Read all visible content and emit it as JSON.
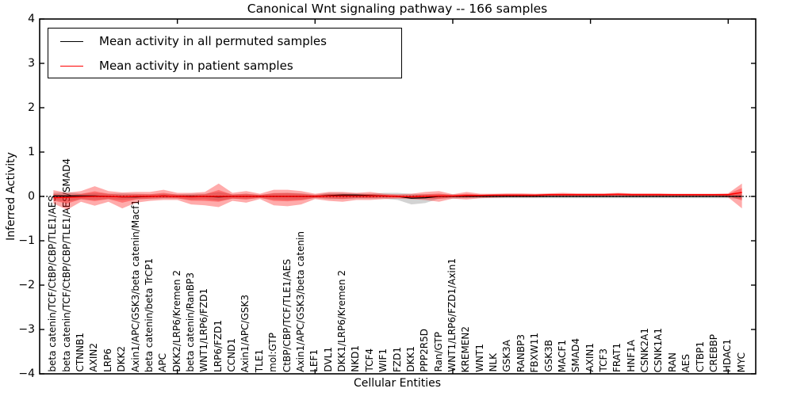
{
  "figure": {
    "title": "Canonical Wnt signaling pathway -- 166 samples",
    "xlabel": "Cellular Entities",
    "ylabel": "Inferred Activity"
  },
  "legend": {
    "entries": [
      {
        "label": "Mean activity in all permuted samples",
        "color": "#000000"
      },
      {
        "label": "Mean activity in patient samples",
        "color": "#ff0000"
      }
    ]
  },
  "axes": {
    "ylim": [
      -4,
      4
    ],
    "y_tick_values": [
      4,
      3,
      2,
      1,
      0,
      -1,
      -2,
      -3,
      -4
    ],
    "y_tick_labels": [
      "4",
      "3",
      "2",
      "1",
      "0",
      "−1",
      "−2",
      "−3",
      "−4"
    ],
    "x_major_tick_positions": [
      10,
      20,
      30,
      40,
      50
    ],
    "zero_line": true
  },
  "chart_data": {
    "type": "line",
    "title": "Canonical Wnt signaling pathway -- 166 samples",
    "xlabel": "Cellular Entities",
    "ylabel": "Inferred Activity",
    "ylim": [
      -4,
      4
    ],
    "legend_position": "upper left",
    "categories": [
      "beta catenin/TCF/CtBP/CBP/TLE1/AES",
      "beta catenin/TCF/CtBP/CBP/TLE1/AES/SMAD4",
      "CTNNB1",
      "AXIN2",
      "LRP6",
      "DKK2",
      "Axin1/APC/GSK3/beta catenin/Macf1",
      "beta catenin/beta TrCP1",
      "APC",
      "DKK2/LRP6/Kremen 2",
      "beta catenin/RanBP3",
      "WNT1/LRP6/FZD1",
      "LRP6/FZD1",
      "CCND1",
      "Axin1/APC/GSK3",
      "TLE1",
      "mol:GTP",
      "CtBP/CBP/TCF/TLE1/AES",
      "Axin1/APC/GSK3/beta catenin",
      "LEF1",
      "DVL1",
      "DKK1/LRP6/Kremen 2",
      "NKD1",
      "TCF4",
      "WIF1",
      "FZD1",
      "DKK1",
      "PPP2R5D",
      "Ran/GTP",
      "WNT1/LRP6/FZD1/Axin1",
      "KREMEN2",
      "WNT1",
      "NLK",
      "GSK3A",
      "RANBP3",
      "FBXW11",
      "GSK3B",
      "MACF1",
      "SMAD4",
      "AXIN1",
      "TCF3",
      "FRAT1",
      "HNF1A",
      "CSNK2A1",
      "CSNK1A1",
      "RAN",
      "AES",
      "CTBP1",
      "CREBBP",
      "HDAC1",
      "MYC"
    ],
    "series": [
      {
        "name": "Mean activity in all permuted samples",
        "color": "#000000",
        "band_color": "#808080",
        "values": [
          0.01,
          0.01,
          0.01,
          0.01,
          0,
          -0.01,
          -0.01,
          0,
          0.01,
          0,
          0,
          0,
          -0.01,
          0,
          0,
          0,
          0,
          0,
          0,
          0,
          0.02,
          0.03,
          0.03,
          0.02,
          0.01,
          0,
          -0.04,
          -0.03,
          0,
          0,
          0,
          0,
          0,
          0,
          0,
          0,
          0,
          0,
          0,
          0,
          0,
          0,
          0,
          0,
          0,
          0,
          0,
          0,
          0,
          0,
          0
        ],
        "band_upper": [
          0.08,
          0.1,
          0.06,
          0.08,
          0.06,
          0.07,
          0.06,
          0.05,
          0.06,
          0.05,
          0.06,
          0.06,
          0.1,
          0.05,
          0.06,
          0.04,
          0.07,
          0.08,
          0.07,
          0.04,
          0.08,
          0.08,
          0.07,
          0.06,
          0.08,
          0.08,
          0.06,
          0.05,
          0.05,
          0.05,
          0.04,
          0.04,
          0.04,
          0.04,
          0.04,
          0.04,
          0.04,
          0.04,
          0.04,
          0.04,
          0.04,
          0.04,
          0.04,
          0.04,
          0.04,
          0.04,
          0.04,
          0.04,
          0.04,
          0.04,
          0.06
        ],
        "band_lower": [
          -0.08,
          -0.12,
          -0.06,
          -0.08,
          -0.06,
          -0.08,
          -0.06,
          -0.06,
          -0.05,
          -0.05,
          -0.07,
          -0.06,
          -0.1,
          -0.05,
          -0.06,
          -0.04,
          -0.07,
          -0.08,
          -0.07,
          -0.04,
          -0.06,
          -0.06,
          -0.05,
          -0.05,
          -0.05,
          -0.08,
          -0.18,
          -0.15,
          -0.05,
          -0.05,
          -0.04,
          -0.04,
          -0.04,
          -0.04,
          -0.04,
          -0.04,
          -0.04,
          -0.04,
          -0.04,
          -0.04,
          -0.04,
          -0.04,
          -0.04,
          -0.04,
          -0.04,
          -0.04,
          -0.04,
          -0.04,
          -0.04,
          -0.04,
          -0.06
        ]
      },
      {
        "name": "Mean activity in patient samples",
        "color": "#ff0000",
        "band_color": "#ff0000",
        "values": [
          -0.03,
          -0.02,
          -0.01,
          0,
          0,
          -0.01,
          0,
          0,
          0.01,
          0,
          -0.01,
          0,
          0,
          0,
          0,
          0,
          0,
          0,
          0,
          0,
          0.01,
          0.01,
          0.01,
          0.01,
          0.01,
          0,
          -0.01,
          0,
          0.01,
          0.01,
          0.02,
          0.02,
          0.03,
          0.03,
          0.03,
          0.03,
          0.04,
          0.04,
          0.04,
          0.04,
          0.04,
          0.05,
          0.04,
          0.04,
          0.04,
          0.04,
          0.04,
          0.04,
          0.04,
          0.04,
          0.09
        ],
        "band_upper": [
          0.14,
          0.08,
          0.12,
          0.23,
          0.12,
          0.09,
          0.1,
          0.1,
          0.15,
          0.08,
          0.08,
          0.1,
          0.29,
          0.08,
          0.12,
          0.06,
          0.15,
          0.15,
          0.12,
          0.06,
          0.1,
          0.1,
          0.08,
          0.1,
          0.06,
          0.05,
          0.06,
          0.1,
          0.12,
          0.05,
          0.1,
          0.06,
          0.06,
          0.07,
          0.07,
          0.06,
          0.07,
          0.08,
          0.07,
          0.07,
          0.07,
          0.08,
          0.07,
          0.07,
          0.07,
          0.06,
          0.06,
          0.06,
          0.06,
          0.07,
          0.29
        ],
        "band_lower": [
          -0.16,
          -0.3,
          -0.12,
          -0.21,
          -0.12,
          -0.27,
          -0.14,
          -0.1,
          -0.08,
          -0.08,
          -0.18,
          -0.2,
          -0.24,
          -0.1,
          -0.14,
          -0.06,
          -0.2,
          -0.22,
          -0.18,
          -0.06,
          -0.1,
          -0.12,
          -0.08,
          -0.08,
          -0.06,
          -0.05,
          -0.06,
          -0.08,
          -0.12,
          -0.05,
          -0.07,
          -0.04,
          -0.03,
          -0.02,
          -0.02,
          -0.02,
          -0.01,
          -0.01,
          -0.01,
          -0.01,
          -0.01,
          -0.01,
          -0.01,
          -0.01,
          -0.01,
          -0.01,
          -0.01,
          -0.01,
          -0.01,
          -0.02,
          -0.27
        ]
      }
    ]
  }
}
